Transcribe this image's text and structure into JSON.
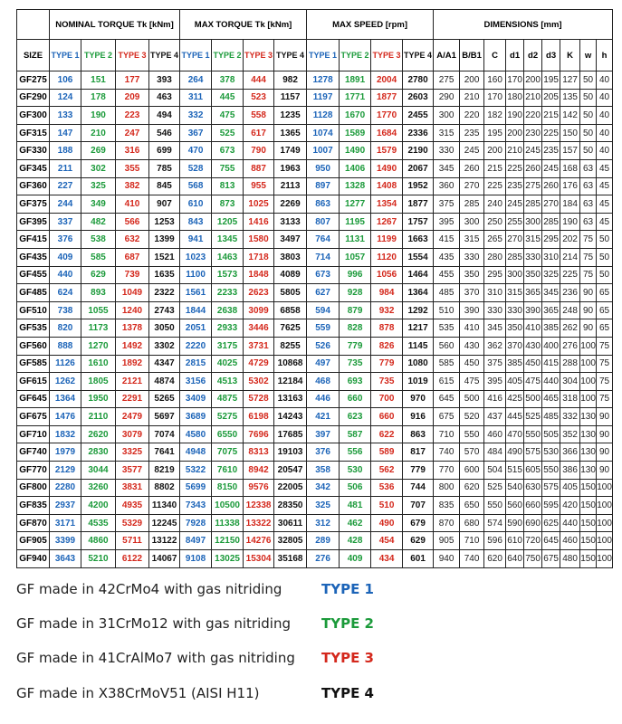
{
  "table": {
    "group_headers": {
      "nominal": "NOMINAL TORQUE Tk [kNm]",
      "max": "MAX TORQUE Tk [kNm]",
      "speed": "MAX SPEED [rpm]",
      "dimensions": "DIMENSIONS [mm]"
    },
    "size_header": "SIZE",
    "type_headers": [
      "TYPE 1",
      "TYPE 2",
      "TYPE 3",
      "TYPE 4"
    ],
    "dimension_headers": [
      "A/A1",
      "B/B1",
      "C",
      "d1",
      "d2",
      "d3",
      "K",
      "w",
      "h"
    ],
    "rows": [
      [
        "GF275",
        106,
        151,
        177,
        393,
        264,
        378,
        444,
        982,
        1278,
        1891,
        2004,
        2780,
        275,
        200,
        160,
        170,
        200,
        195,
        127,
        50,
        40
      ],
      [
        "GF290",
        124,
        178,
        209,
        463,
        311,
        445,
        523,
        1157,
        1197,
        1771,
        1877,
        2603,
        290,
        210,
        170,
        180,
        210,
        205,
        135,
        50,
        40
      ],
      [
        "GF300",
        133,
        190,
        223,
        494,
        332,
        475,
        558,
        1235,
        1128,
        1670,
        1770,
        2455,
        300,
        220,
        182,
        190,
        220,
        215,
        142,
        50,
        40
      ],
      [
        "GF315",
        147,
        210,
        247,
        546,
        367,
        525,
        617,
        1365,
        1074,
        1589,
        1684,
        2336,
        315,
        235,
        195,
        200,
        230,
        225,
        150,
        50,
        40
      ],
      [
        "GF330",
        188,
        269,
        316,
        699,
        470,
        673,
        790,
        1749,
        1007,
        1490,
        1579,
        2190,
        330,
        245,
        200,
        210,
        245,
        235,
        157,
        50,
        40
      ],
      [
        "GF345",
        211,
        302,
        355,
        785,
        528,
        755,
        887,
        1963,
        950,
        1406,
        1490,
        2067,
        345,
        260,
        215,
        225,
        260,
        245,
        168,
        63,
        45
      ],
      [
        "GF360",
        227,
        325,
        382,
        845,
        568,
        813,
        955,
        2113,
        897,
        1328,
        1408,
        1952,
        360,
        270,
        225,
        235,
        275,
        260,
        176,
        63,
        45
      ],
      [
        "GF375",
        244,
        349,
        410,
        907,
        610,
        873,
        1025,
        2269,
        863,
        1277,
        1354,
        1877,
        375,
        285,
        240,
        245,
        285,
        270,
        184,
        63,
        45
      ],
      [
        "GF395",
        337,
        482,
        566,
        1253,
        843,
        1205,
        1416,
        3133,
        807,
        1195,
        1267,
        1757,
        395,
        300,
        250,
        255,
        300,
        285,
        190,
        63,
        45
      ],
      [
        "GF415",
        376,
        538,
        632,
        1399,
        941,
        1345,
        1580,
        3497,
        764,
        1131,
        1199,
        1663,
        415,
        315,
        265,
        270,
        315,
        295,
        202,
        75,
        50
      ],
      [
        "GF435",
        409,
        585,
        687,
        1521,
        1023,
        1463,
        1718,
        3803,
        714,
        1057,
        1120,
        1554,
        435,
        330,
        280,
        285,
        330,
        310,
        214,
        75,
        50
      ],
      [
        "GF455",
        440,
        629,
        739,
        1635,
        1100,
        1573,
        1848,
        4089,
        673,
        996,
        1056,
        1464,
        455,
        350,
        295,
        300,
        350,
        325,
        225,
        75,
        50
      ],
      [
        "GF485",
        624,
        893,
        1049,
        2322,
        1561,
        2233,
        2623,
        5805,
        627,
        928,
        984,
        1364,
        485,
        370,
        310,
        315,
        365,
        345,
        236,
        90,
        65
      ],
      [
        "GF510",
        738,
        1055,
        1240,
        2743,
        1844,
        2638,
        3099,
        6858,
        594,
        879,
        932,
        1292,
        510,
        390,
        330,
        330,
        390,
        365,
        248,
        90,
        65
      ],
      [
        "GF535",
        820,
        1173,
        1378,
        3050,
        2051,
        2933,
        3446,
        7625,
        559,
        828,
        878,
        1217,
        535,
        410,
        345,
        350,
        410,
        385,
        262,
        90,
        65
      ],
      [
        "GF560",
        888,
        1270,
        1492,
        3302,
        2220,
        3175,
        3731,
        8255,
        526,
        779,
        826,
        1145,
        560,
        430,
        362,
        370,
        430,
        400,
        276,
        100,
        75
      ],
      [
        "GF585",
        1126,
        1610,
        1892,
        4347,
        2815,
        4025,
        4729,
        10868,
        497,
        735,
        779,
        1080,
        585,
        450,
        375,
        385,
        450,
        415,
        288,
        100,
        75
      ],
      [
        "GF615",
        1262,
        1805,
        2121,
        4874,
        3156,
        4513,
        5302,
        12184,
        468,
        693,
        735,
        1019,
        615,
        475,
        395,
        405,
        475,
        440,
        304,
        100,
        75
      ],
      [
        "GF645",
        1364,
        1950,
        2291,
        5265,
        3409,
        4875,
        5728,
        13163,
        446,
        660,
        700,
        970,
        645,
        500,
        416,
        425,
        500,
        465,
        318,
        100,
        75
      ],
      [
        "GF675",
        1476,
        2110,
        2479,
        5697,
        3689,
        5275,
        6198,
        14243,
        421,
        623,
        660,
        916,
        675,
        520,
        437,
        445,
        525,
        485,
        332,
        130,
        90
      ],
      [
        "GF710",
        1832,
        2620,
        3079,
        7074,
        4580,
        6550,
        7696,
        17685,
        397,
        587,
        622,
        863,
        710,
        550,
        460,
        470,
        550,
        505,
        352,
        130,
        90
      ],
      [
        "GF740",
        1979,
        2830,
        3325,
        7641,
        4948,
        7075,
        8313,
        19103,
        376,
        556,
        589,
        817,
        740,
        570,
        484,
        490,
        575,
        530,
        366,
        130,
        90
      ],
      [
        "GF770",
        2129,
        3044,
        3577,
        8219,
        5322,
        7610,
        8942,
        20547,
        358,
        530,
        562,
        779,
        770,
        600,
        504,
        515,
        605,
        550,
        386,
        130,
        90
      ],
      [
        "GF800",
        2280,
        3260,
        3831,
        8802,
        5699,
        8150,
        9576,
        22005,
        342,
        506,
        536,
        744,
        800,
        620,
        525,
        540,
        630,
        575,
        405,
        150,
        100
      ],
      [
        "GF835",
        2937,
        4200,
        4935,
        11340,
        7343,
        10500,
        12338,
        28350,
        325,
        481,
        510,
        707,
        835,
        650,
        550,
        560,
        660,
        595,
        420,
        150,
        100
      ],
      [
        "GF870",
        3171,
        4535,
        5329,
        12245,
        7928,
        11338,
        13322,
        30611,
        312,
        462,
        490,
        679,
        870,
        680,
        574,
        590,
        690,
        625,
        440,
        150,
        100
      ],
      [
        "GF905",
        3399,
        4860,
        5711,
        13122,
        8497,
        12150,
        14276,
        32805,
        289,
        428,
        454,
        629,
        905,
        710,
        596,
        610,
        720,
        645,
        460,
        150,
        100
      ],
      [
        "GF940",
        3643,
        5210,
        6122,
        14067,
        9108,
        13025,
        15304,
        35168,
        276,
        409,
        434,
        601,
        940,
        740,
        620,
        640,
        750,
        675,
        480,
        150,
        100
      ]
    ]
  },
  "legend": [
    {
      "text": "GF made in 42CrMo4 with gas nitriding",
      "type": "TYPE 1"
    },
    {
      "text": "GF made in 31CrMo12 with gas nitriding",
      "type": "TYPE 2"
    },
    {
      "text": "GF made in 41CrAlMo7 with gas nitriding",
      "type": "TYPE 3"
    },
    {
      "text": "GF made in X38CrMoV51 (AISI H11)",
      "type": "TYPE 4"
    }
  ]
}
